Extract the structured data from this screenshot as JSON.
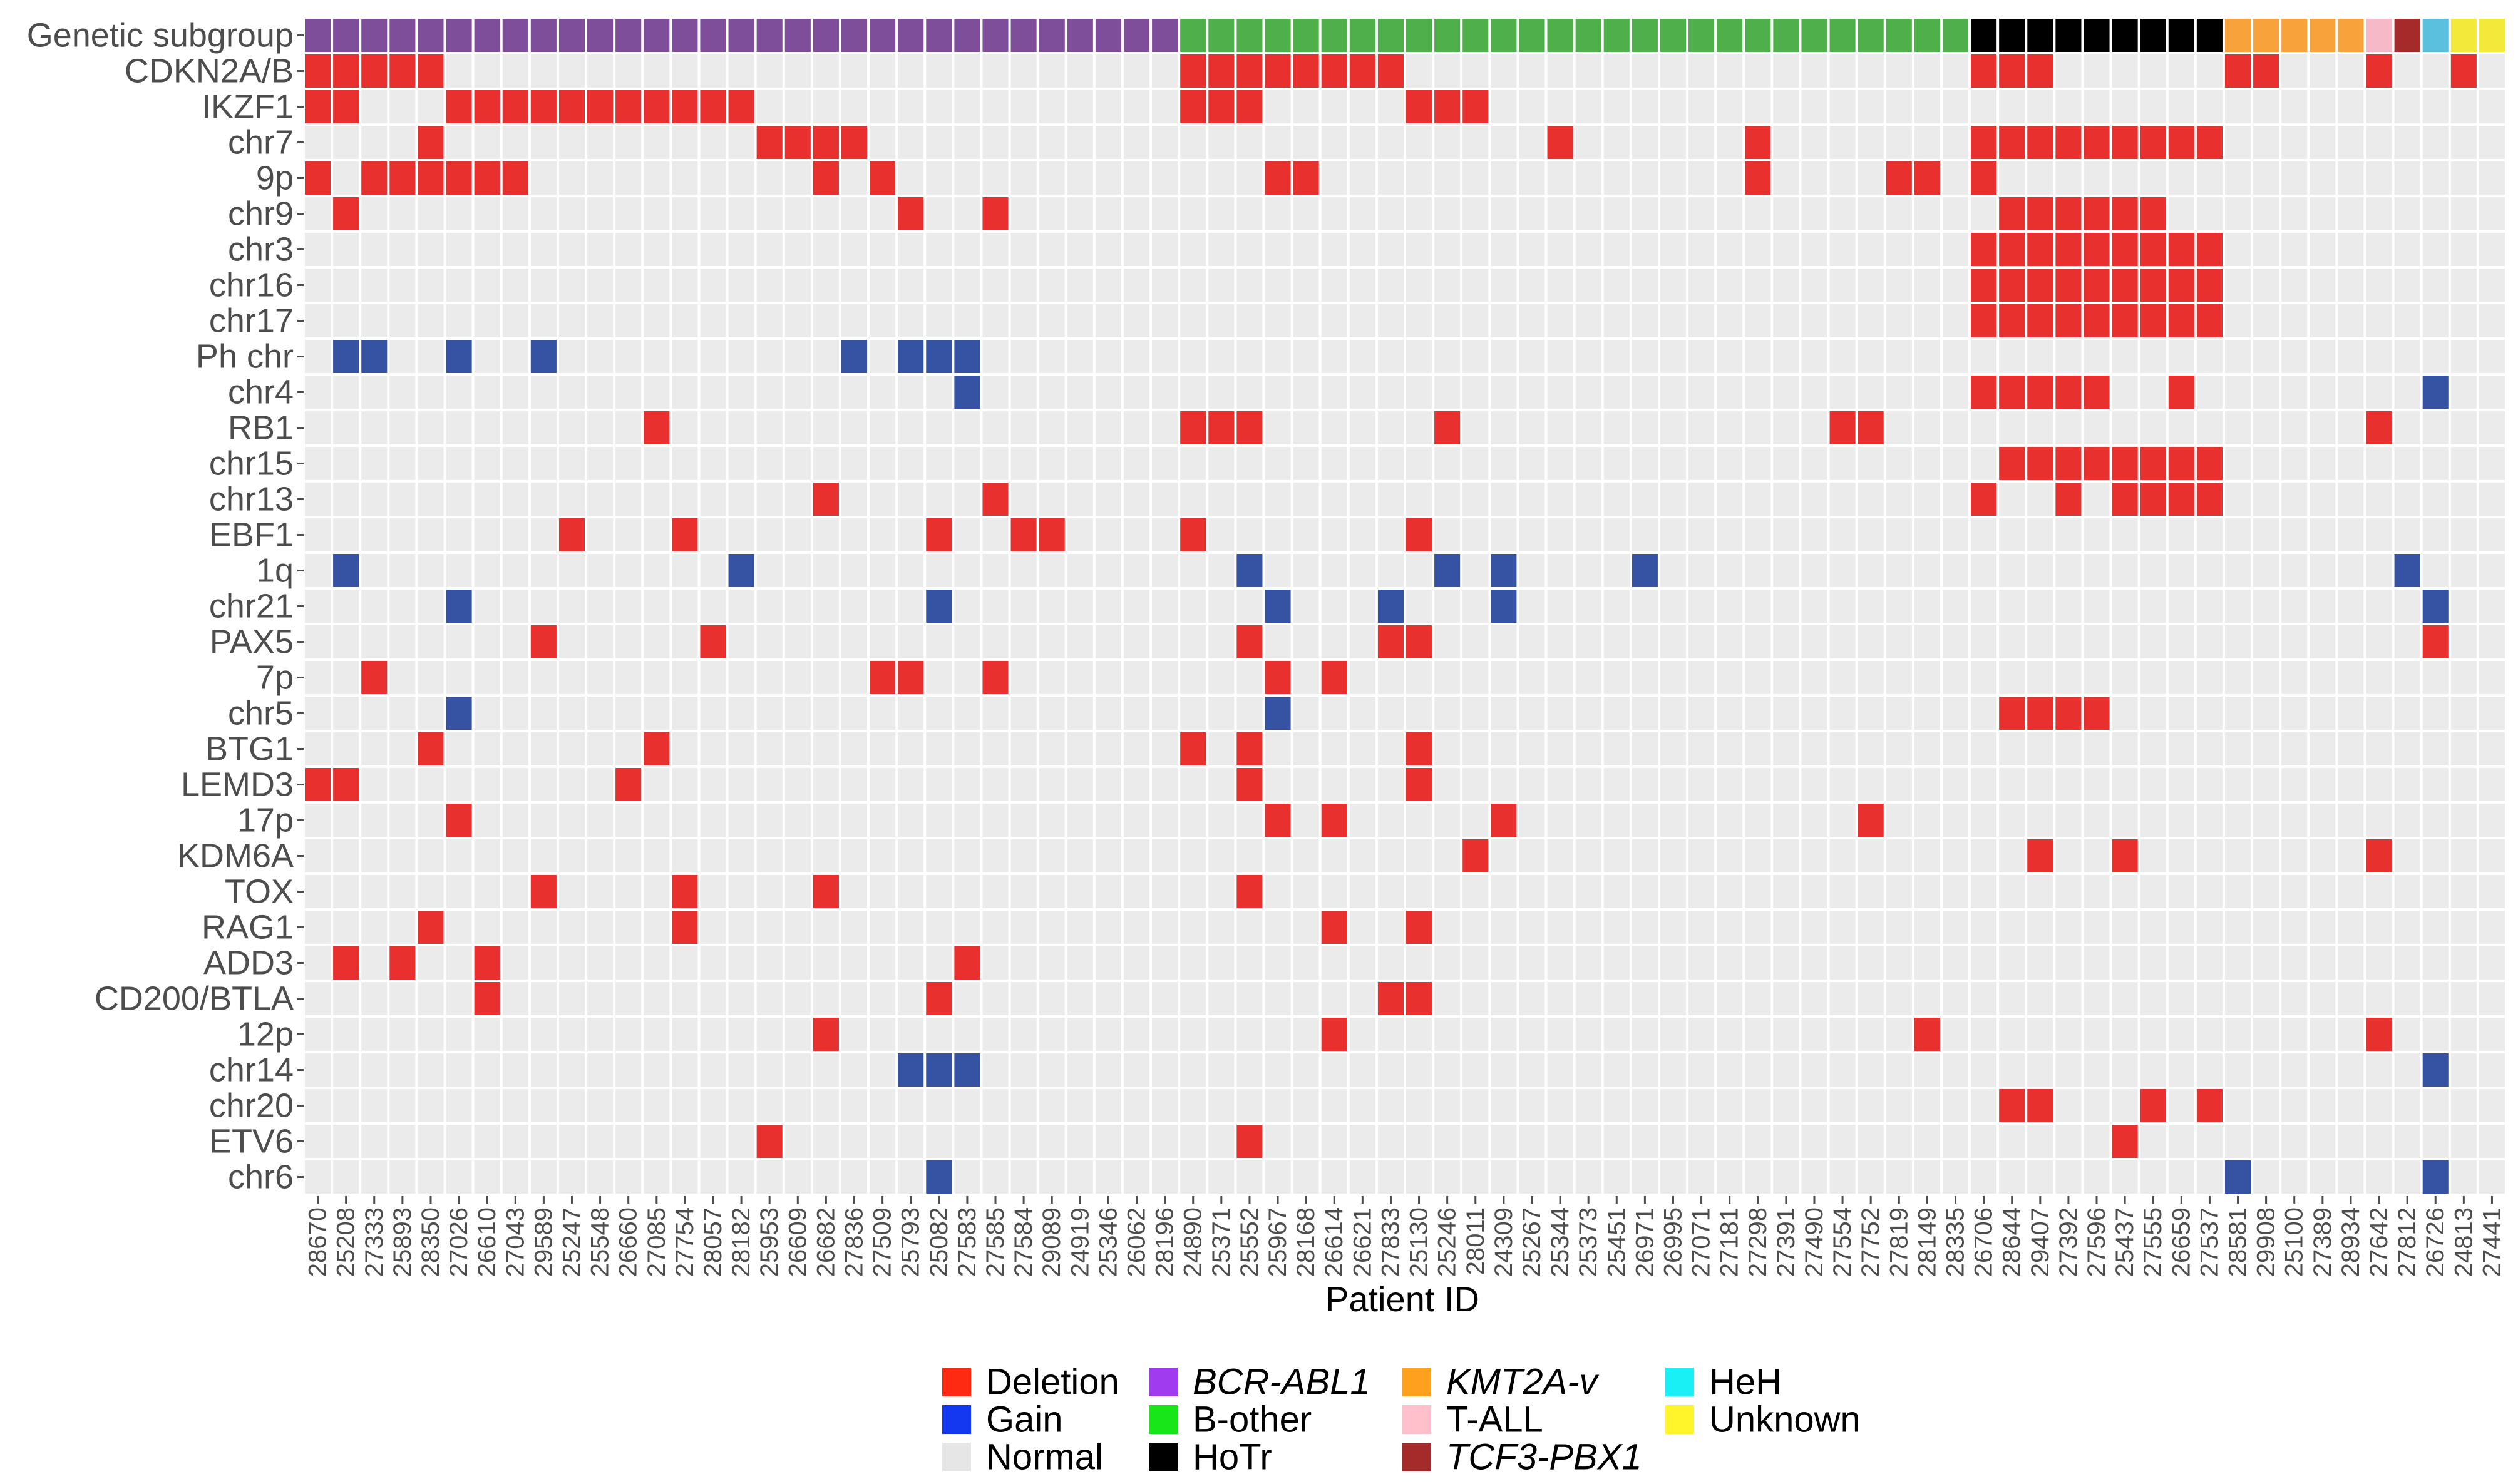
{
  "chart_data": {
    "type": "heatmap",
    "xlabel": "Patient ID",
    "ylabel": "",
    "rows": [
      "Genetic subgroup",
      "CDKN2A/B",
      "IKZF1",
      "chr7",
      "9p",
      "chr9",
      "chr3",
      "chr16",
      "chr17",
      "Ph chr",
      "chr4",
      "RB1",
      "chr15",
      "chr13",
      "EBF1",
      "1q",
      "chr21",
      "PAX5",
      "7p",
      "chr5",
      "BTG1",
      "LEMD3",
      "17p",
      "KDM6A",
      "TOX",
      "RAG1",
      "ADD3",
      "CD200/BTLA",
      "12p",
      "chr14",
      "chr20",
      "ETV6",
      "chr6"
    ],
    "patient_ids": [
      "28670",
      "25208",
      "27333",
      "25893",
      "28350",
      "27026",
      "26610",
      "27043",
      "29589",
      "25247",
      "25548",
      "26660",
      "27085",
      "27754",
      "28057",
      "28182",
      "25953",
      "26609",
      "26682",
      "27836",
      "27509",
      "25793",
      "25082",
      "27583",
      "27585",
      "27584",
      "29089",
      "24919",
      "25346",
      "26062",
      "28196",
      "24890",
      "25371",
      "25552",
      "25967",
      "28168",
      "26614",
      "26621",
      "27833",
      "25130",
      "25246",
      "28011",
      "24309",
      "25267",
      "25344",
      "25373",
      "25451",
      "26971",
      "26995",
      "27071",
      "27181",
      "27298",
      "27391",
      "27490",
      "27554",
      "27752",
      "27819",
      "28149",
      "28335",
      "26706",
      "28644",
      "29407",
      "27392",
      "27596",
      "25437",
      "27555",
      "26659",
      "27537",
      "28581",
      "29908",
      "25100",
      "27389",
      "28934",
      "27642",
      "27812",
      "26726",
      "24813",
      "27441"
    ],
    "subgroups": [
      {
        "name": "BCR-ABL1",
        "italic": true,
        "count": 31,
        "color": "#7E4E9B"
      },
      {
        "name": "B-other",
        "italic": false,
        "count": 28,
        "color": "#4FAF4A"
      },
      {
        "name": "HoTr",
        "italic": false,
        "count": 9,
        "color": "#000000"
      },
      {
        "name": "KMT2A-v",
        "italic": true,
        "count": 5,
        "color": "#F7A23A"
      },
      {
        "name": "T-ALL",
        "italic": false,
        "count": 1,
        "color": "#F5B9C7"
      },
      {
        "name": "TCF3-PBX1",
        "italic": true,
        "count": 1,
        "color": "#A52A2A"
      },
      {
        "name": "HeH",
        "italic": false,
        "count": 1,
        "color": "#5BC0DE"
      },
      {
        "name": "Unknown",
        "italic": false,
        "count": 2,
        "color": "#F2E93A"
      }
    ],
    "alterations": [
      {
        "row": "CDKN2A/B",
        "deletion": [
          0,
          1,
          2,
          3,
          4,
          31,
          32,
          33,
          34,
          35,
          36,
          37,
          38,
          59,
          60,
          61,
          68,
          69,
          73,
          76
        ],
        "gain": []
      },
      {
        "row": "IKZF1",
        "deletion": [
          0,
          1,
          5,
          6,
          7,
          8,
          9,
          10,
          11,
          12,
          13,
          14,
          15,
          31,
          32,
          33,
          39,
          40,
          41
        ],
        "gain": []
      },
      {
        "row": "chr7",
        "deletion": [
          4,
          16,
          17,
          18,
          19,
          44,
          51,
          59,
          60,
          61,
          62,
          63,
          64,
          65,
          66,
          67
        ],
        "gain": []
      },
      {
        "row": "9p",
        "deletion": [
          0,
          2,
          3,
          4,
          5,
          6,
          7,
          18,
          20,
          34,
          35,
          51,
          56,
          57,
          59
        ],
        "gain": []
      },
      {
        "row": "chr9",
        "deletion": [
          1,
          21,
          24,
          60,
          61,
          62,
          63,
          64,
          65
        ],
        "gain": []
      },
      {
        "row": "chr3",
        "deletion": [
          59,
          60,
          61,
          62,
          63,
          64,
          65,
          66,
          67
        ],
        "gain": []
      },
      {
        "row": "chr16",
        "deletion": [
          59,
          60,
          61,
          62,
          63,
          64,
          65,
          66,
          67
        ],
        "gain": []
      },
      {
        "row": "chr17",
        "deletion": [
          59,
          60,
          61,
          62,
          63,
          64,
          65,
          66,
          67
        ],
        "gain": []
      },
      {
        "row": "Ph chr",
        "deletion": [],
        "gain": [
          1,
          2,
          5,
          8,
          19,
          21,
          22,
          23
        ]
      },
      {
        "row": "chr4",
        "deletion": [
          59,
          60,
          61,
          62,
          63,
          66
        ],
        "gain": [
          23,
          75
        ]
      },
      {
        "row": "RB1",
        "deletion": [
          12,
          31,
          32,
          33,
          40,
          54,
          55,
          73
        ],
        "gain": []
      },
      {
        "row": "chr15",
        "deletion": [
          60,
          61,
          62,
          63,
          64,
          65,
          66,
          67
        ],
        "gain": []
      },
      {
        "row": "chr13",
        "deletion": [
          18,
          24,
          59,
          62,
          64,
          65,
          66,
          67
        ],
        "gain": []
      },
      {
        "row": "EBF1",
        "deletion": [
          9,
          13,
          22,
          25,
          26,
          31,
          39
        ],
        "gain": []
      },
      {
        "row": "1q",
        "deletion": [],
        "gain": [
          1,
          15,
          33,
          40,
          42,
          47,
          74
        ]
      },
      {
        "row": "chr21",
        "deletion": [],
        "gain": [
          5,
          22,
          34,
          38,
          42,
          75
        ]
      },
      {
        "row": "PAX5",
        "deletion": [
          8,
          14,
          33,
          38,
          39,
          75
        ],
        "gain": []
      },
      {
        "row": "7p",
        "deletion": [
          2,
          20,
          21,
          24,
          34,
          36
        ],
        "gain": []
      },
      {
        "row": "chr5",
        "deletion": [
          60,
          61,
          62,
          63
        ],
        "gain": [
          5,
          34
        ]
      },
      {
        "row": "BTG1",
        "deletion": [
          4,
          12,
          31,
          33,
          39
        ],
        "gain": []
      },
      {
        "row": "LEMD3",
        "deletion": [
          0,
          1,
          11,
          33,
          39
        ],
        "gain": []
      },
      {
        "row": "17p",
        "deletion": [
          5,
          34,
          36,
          42,
          55
        ],
        "gain": []
      },
      {
        "row": "KDM6A",
        "deletion": [
          41,
          61,
          64,
          73
        ],
        "gain": []
      },
      {
        "row": "TOX",
        "deletion": [
          8,
          13,
          18,
          33
        ],
        "gain": []
      },
      {
        "row": "RAG1",
        "deletion": [
          4,
          13,
          36,
          39
        ],
        "gain": []
      },
      {
        "row": "ADD3",
        "deletion": [
          1,
          3,
          6,
          23
        ],
        "gain": []
      },
      {
        "row": "CD200/BTLA",
        "deletion": [
          6,
          22,
          38,
          39
        ],
        "gain": []
      },
      {
        "row": "12p",
        "deletion": [
          18,
          36,
          57,
          73
        ],
        "gain": []
      },
      {
        "row": "chr14",
        "deletion": [],
        "gain": [
          21,
          22,
          23,
          75
        ]
      },
      {
        "row": "chr20",
        "deletion": [
          60,
          61,
          65,
          67
        ],
        "gain": []
      },
      {
        "row": "ETV6",
        "deletion": [
          16,
          33,
          64
        ],
        "gain": []
      },
      {
        "row": "chr6",
        "deletion": [],
        "gain": [
          22,
          68,
          75
        ]
      }
    ],
    "legend": {
      "status": [
        {
          "label": "Deletion",
          "color": "#FF2A12"
        },
        {
          "label": "Gain",
          "color": "#1438F0"
        },
        {
          "label": "Normal",
          "color": "#E6E6E6"
        }
      ],
      "subgroups": [
        {
          "label": "BCR-ABL1",
          "italic": true,
          "color": "#A03BF0"
        },
        {
          "label": "B-other",
          "italic": false,
          "color": "#19E619"
        },
        {
          "label": "HoTr",
          "italic": false,
          "color": "#000000"
        },
        {
          "label": "KMT2A-v",
          "italic": true,
          "color": "#FFA01E"
        },
        {
          "label": "T-ALL",
          "italic": false,
          "color": "#FFC0CB"
        },
        {
          "label": "TCF3-PBX1",
          "italic": true,
          "color": "#A52A2A"
        },
        {
          "label": "HeH",
          "italic": false,
          "color": "#19F0F5"
        },
        {
          "label": "Unknown",
          "italic": false,
          "color": "#FFF52A"
        }
      ]
    },
    "cell_colors": {
      "deletion": "#E8312F",
      "gain": "#3652A3",
      "normal": "#EBEBEB"
    }
  }
}
